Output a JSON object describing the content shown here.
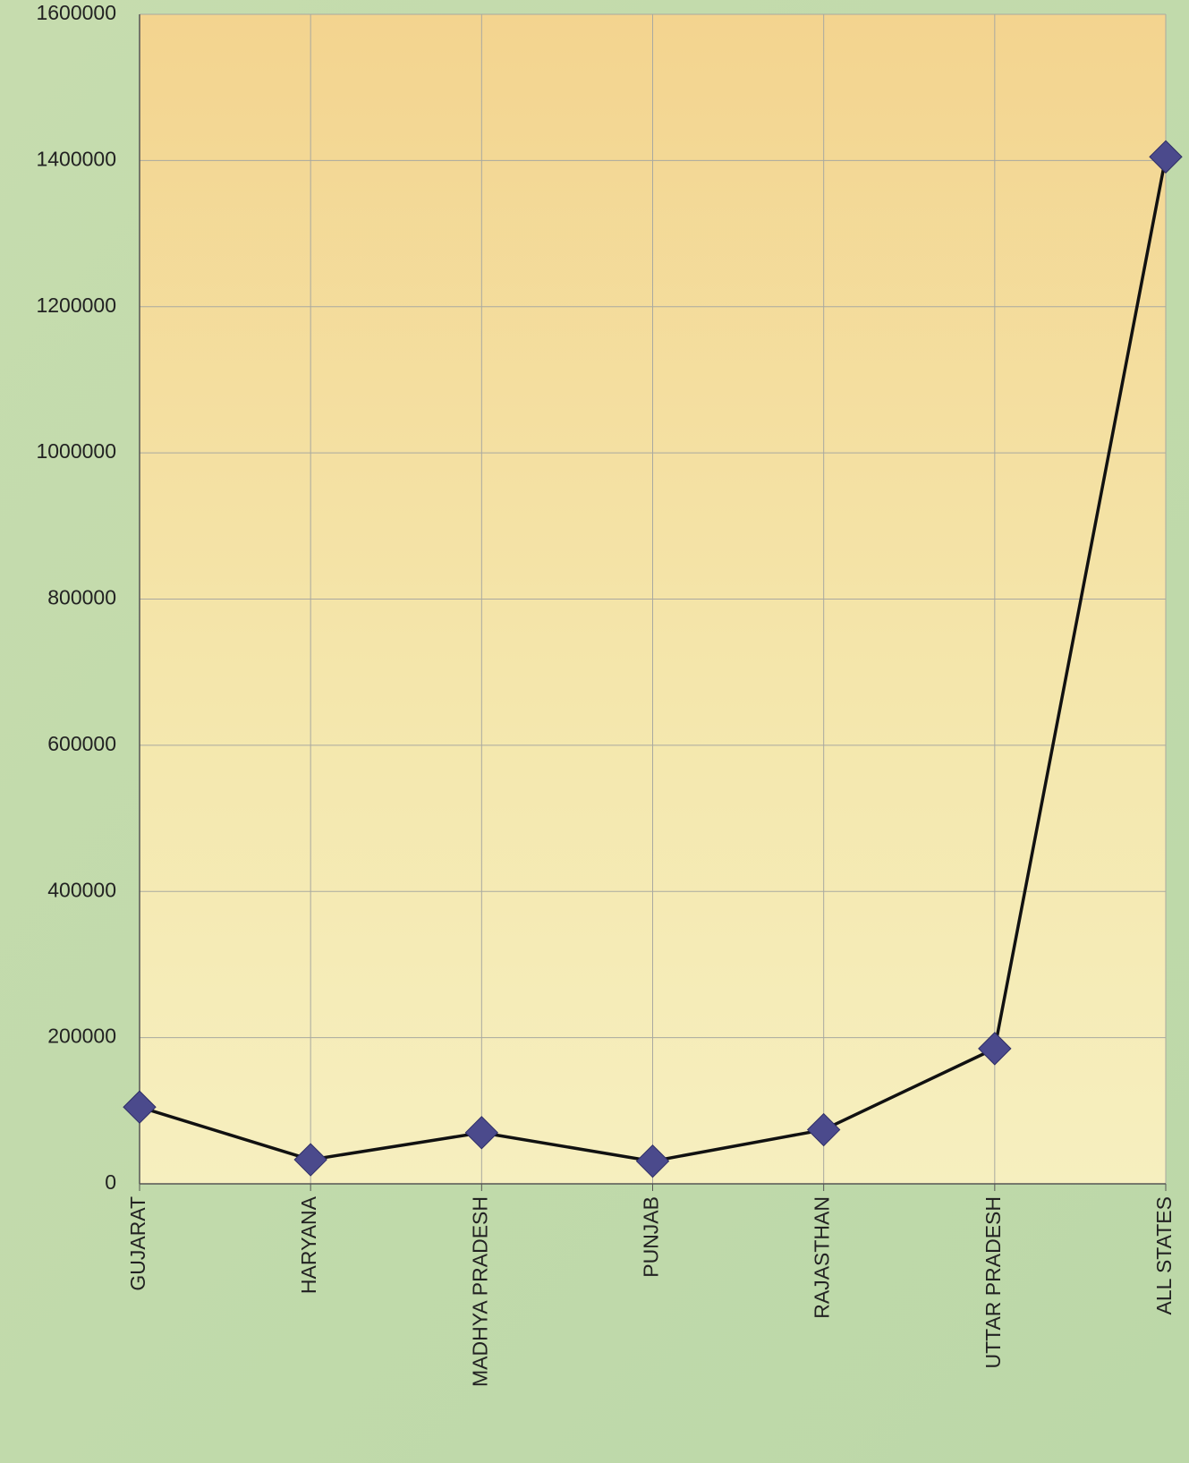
{
  "chart_data": {
    "type": "line",
    "categories": [
      "GUJARAT",
      "HARYANA",
      "MADHYA PRADESH",
      "PUNJAB",
      "RAJASTHAN",
      "UTTAR PRADESH",
      "ALL STATES"
    ],
    "series": [
      {
        "color": "#4b4a8c",
        "values": [
          105000,
          33000,
          70000,
          31000,
          74000,
          185000,
          1405000
        ]
      }
    ],
    "ylim": [
      0,
      1600000
    ],
    "yticks": [
      0,
      200000,
      400000,
      600000,
      800000,
      1000000,
      1200000,
      1400000,
      1600000
    ],
    "grid": true
  }
}
